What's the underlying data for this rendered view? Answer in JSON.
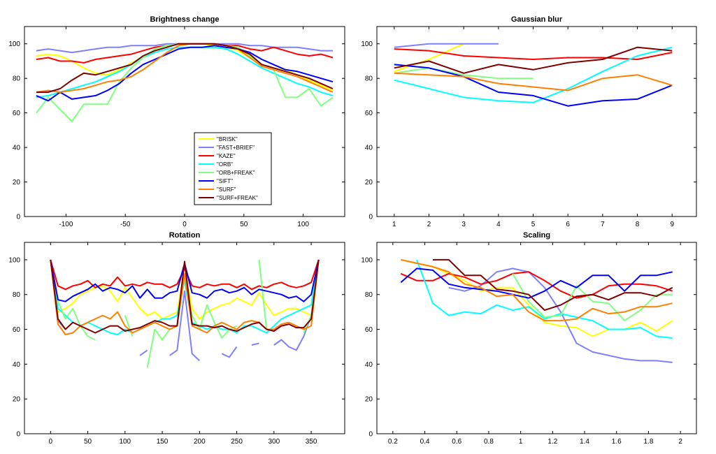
{
  "chart_data": [
    {
      "type": "line",
      "title": "Brightness change",
      "xlabel": "",
      "ylabel": "",
      "xlim": [
        -135,
        135
      ],
      "ylim": [
        0,
        110
      ],
      "xticks": [
        -100,
        -50,
        0,
        50,
        100
      ],
      "yticks": [
        0,
        20,
        40,
        60,
        80,
        100
      ],
      "legend": {
        "position": "center"
      },
      "x": [
        -125,
        -115,
        -105,
        -95,
        -85,
        -75,
        -65,
        -55,
        -45,
        -35,
        -25,
        -15,
        -5,
        5,
        15,
        25,
        35,
        45,
        55,
        65,
        75,
        85,
        95,
        105,
        115,
        125
      ],
      "series": [
        {
          "name": "\"BRISK\"",
          "color": "#ffff00",
          "values": [
            93,
            94,
            93,
            90,
            86,
            83,
            82,
            85,
            89,
            92,
            97,
            99,
            100,
            100,
            100,
            99,
            98,
            96,
            92,
            88,
            86,
            85,
            82,
            79,
            76,
            73
          ]
        },
        {
          "name": "\"FAST+BRIEF\"",
          "color": "#8080ff",
          "values": [
            96,
            97,
            96,
            95,
            96,
            97,
            98,
            98,
            99,
            99,
            99,
            100,
            100,
            100,
            100,
            100,
            100,
            100,
            99,
            99,
            98,
            98,
            98,
            97,
            96,
            96
          ]
        },
        {
          "name": "\"KAZE\"",
          "color": "#ff0000",
          "values": [
            91,
            92,
            90,
            90,
            89,
            91,
            92,
            93,
            94,
            96,
            98,
            99,
            100,
            100,
            100,
            100,
            99,
            99,
            97,
            96,
            98,
            96,
            94,
            93,
            94,
            92
          ]
        },
        {
          "name": "\"ORB\"",
          "color": "#00ffff",
          "values": [
            69,
            70,
            72,
            74,
            76,
            78,
            81,
            84,
            88,
            92,
            95,
            97,
            98,
            98,
            98,
            98,
            97,
            94,
            90,
            86,
            83,
            80,
            77,
            75,
            72,
            70
          ]
        },
        {
          "name": "\"ORB+FREAK\"",
          "color": "#80ff80",
          "values": [
            60,
            69,
            62,
            55,
            65,
            65,
            65,
            78,
            86,
            92,
            97,
            99,
            100,
            100,
            100,
            100,
            99,
            98,
            93,
            87,
            85,
            69,
            69,
            74,
            64,
            69
          ]
        },
        {
          "name": "\"SIFT\"",
          "color": "#0000ff",
          "values": [
            70,
            67,
            72,
            68,
            69,
            70,
            73,
            77,
            83,
            88,
            91,
            94,
            97,
            98,
            98,
            99,
            98,
            97,
            95,
            91,
            88,
            85,
            84,
            82,
            80,
            78
          ]
        },
        {
          "name": "\"SURF\"",
          "color": "#ff8000",
          "values": [
            72,
            73,
            72,
            73,
            74,
            76,
            78,
            79,
            81,
            85,
            90,
            95,
            99,
            100,
            100,
            100,
            99,
            97,
            92,
            87,
            85,
            83,
            81,
            78,
            75,
            72
          ]
        },
        {
          "name": "\"SURF+FREAK\"",
          "color": "#800000",
          "values": [
            72,
            72,
            74,
            79,
            83,
            82,
            84,
            86,
            88,
            93,
            96,
            98,
            100,
            100,
            100,
            100,
            99,
            97,
            94,
            88,
            86,
            84,
            82,
            80,
            77,
            74
          ]
        }
      ]
    },
    {
      "type": "line",
      "title": "Gaussian blur",
      "xlabel": "",
      "ylabel": "",
      "xlim": [
        0.5,
        9.7
      ],
      "ylim": [
        0,
        110
      ],
      "xticks": [
        1,
        2,
        3,
        4,
        5,
        6,
        7,
        8,
        9
      ],
      "yticks": [
        0,
        20,
        40,
        60,
        80,
        100
      ],
      "x": [
        1,
        2,
        3,
        4,
        5,
        6,
        7,
        8,
        9
      ],
      "series": [
        {
          "name": "\"BRISK\"",
          "color": "#ffff00",
          "values": [
            84,
            91,
            100,
            null,
            null,
            null,
            null,
            null,
            null
          ]
        },
        {
          "name": "\"FAST+BRIEF\"",
          "color": "#8080ff",
          "values": [
            98,
            100,
            100,
            100,
            null,
            null,
            null,
            null,
            null
          ]
        },
        {
          "name": "\"KAZE\"",
          "color": "#ff0000",
          "values": [
            97,
            96,
            93,
            92,
            91,
            92,
            92,
            91,
            95
          ]
        },
        {
          "name": "\"ORB\"",
          "color": "#00ffff",
          "values": [
            79,
            74,
            69,
            67,
            66,
            74,
            84,
            93,
            98
          ]
        },
        {
          "name": "\"ORB+FREAK\"",
          "color": "#80ff80",
          "values": [
            83,
            86,
            82,
            80,
            80,
            null,
            null,
            null,
            null
          ]
        },
        {
          "name": "\"SIFT\"",
          "color": "#0000ff",
          "values": [
            88,
            86,
            81,
            72,
            70,
            64,
            67,
            68,
            76
          ]
        },
        {
          "name": "\"SURF\"",
          "color": "#ff8000",
          "values": [
            83,
            82,
            81,
            77,
            75,
            73,
            80,
            82,
            76
          ]
        },
        {
          "name": "\"SURF+FREAK\"",
          "color": "#800000",
          "values": [
            86,
            90,
            83,
            88,
            85,
            89,
            91,
            98,
            96
          ]
        }
      ]
    },
    {
      "type": "line",
      "title": "Rotation",
      "xlabel": "",
      "ylabel": "",
      "xlim": [
        -35,
        395
      ],
      "ylim": [
        0,
        110
      ],
      "xticks": [
        0,
        50,
        100,
        150,
        200,
        250,
        300,
        350
      ],
      "yticks": [
        0,
        20,
        40,
        60,
        80,
        100
      ],
      "x": [
        0,
        10,
        20,
        30,
        40,
        50,
        60,
        70,
        80,
        90,
        100,
        110,
        120,
        130,
        140,
        150,
        160,
        170,
        180,
        190,
        200,
        210,
        220,
        230,
        240,
        250,
        260,
        270,
        280,
        290,
        300,
        310,
        320,
        330,
        340,
        350,
        360
      ],
      "series": [
        {
          "name": "\"BRISK\"",
          "color": "#ffff00",
          "values": [
            100,
            70,
            72,
            75,
            80,
            82,
            84,
            85,
            82,
            76,
            84,
            78,
            72,
            68,
            70,
            66,
            68,
            70,
            96,
            72,
            66,
            70,
            72,
            74,
            75,
            78,
            76,
            74,
            81,
            74,
            68,
            70,
            72,
            72,
            70,
            68,
            100
          ]
        },
        {
          "name": "\"FAST+BRIEF\"",
          "color": "#8080ff",
          "values": [
            100,
            65,
            60,
            null,
            null,
            null,
            null,
            null,
            null,
            null,
            null,
            null,
            45,
            48,
            null,
            null,
            45,
            48,
            82,
            46,
            42,
            null,
            null,
            46,
            44,
            50,
            null,
            51,
            52,
            null,
            51,
            54,
            50,
            48,
            56,
            68,
            100
          ]
        },
        {
          "name": "\"KAZE\"",
          "color": "#ff0000",
          "values": [
            100,
            85,
            83,
            85,
            86,
            88,
            84,
            86,
            85,
            90,
            85,
            86,
            85,
            87,
            86,
            86,
            84,
            86,
            95,
            85,
            84,
            86,
            85,
            86,
            86,
            84,
            86,
            83,
            85,
            84,
            86,
            87,
            85,
            84,
            85,
            87,
            100
          ]
        },
        {
          "name": "\"ORB\"",
          "color": "#00ffff",
          "values": [
            100,
            72,
            68,
            64,
            62,
            64,
            62,
            60,
            58,
            57,
            60,
            58,
            60,
            62,
            64,
            66,
            66,
            68,
            88,
            64,
            62,
            60,
            62,
            60,
            60,
            58,
            62,
            62,
            60,
            58,
            62,
            66,
            68,
            70,
            72,
            74,
            100
          ]
        },
        {
          "name": "\"ORB+FREAK\"",
          "color": "#80ff80",
          "values": [
            100,
            76,
            66,
            72,
            62,
            56,
            54,
            null,
            null,
            null,
            68,
            56,
            null,
            38,
            60,
            54,
            60,
            62,
            90,
            68,
            60,
            74,
            64,
            55,
            60,
            62,
            null,
            null,
            100,
            60,
            null,
            null,
            null,
            null,
            58,
            68,
            100
          ]
        },
        {
          "name": "\"SIFT\"",
          "color": "#0000ff",
          "values": [
            100,
            77,
            76,
            79,
            81,
            83,
            86,
            82,
            84,
            83,
            81,
            85,
            78,
            83,
            78,
            78,
            81,
            82,
            98,
            81,
            80,
            78,
            82,
            83,
            81,
            82,
            84,
            80,
            83,
            82,
            81,
            80,
            78,
            79,
            76,
            80,
            100
          ]
        },
        {
          "name": "\"SURF\"",
          "color": "#ff8000",
          "values": [
            100,
            63,
            57,
            58,
            62,
            64,
            66,
            68,
            66,
            70,
            62,
            58,
            60,
            62,
            64,
            62,
            60,
            62,
            92,
            62,
            60,
            58,
            62,
            64,
            62,
            60,
            64,
            65,
            64,
            60,
            60,
            63,
            64,
            62,
            60,
            62,
            100
          ]
        },
        {
          "name": "\"SURF+FREAK\"",
          "color": "#800000",
          "values": [
            100,
            66,
            60,
            64,
            62,
            60,
            58,
            60,
            62,
            62,
            59,
            60,
            61,
            63,
            65,
            64,
            62,
            62,
            99,
            63,
            62,
            62,
            61,
            62,
            60,
            59,
            61,
            63,
            64,
            60,
            59,
            62,
            63,
            61,
            61,
            66,
            100
          ]
        }
      ]
    },
    {
      "type": "line",
      "title": "Scaling",
      "xlabel": "",
      "ylabel": "",
      "xlim": [
        0.1,
        2.1
      ],
      "ylim": [
        0,
        110
      ],
      "xticks": [
        0.2,
        0.4,
        0.6,
        0.8,
        1,
        1.2,
        1.4,
        1.6,
        1.8,
        2
      ],
      "yticks": [
        0,
        20,
        40,
        60,
        80,
        100
      ],
      "x": [
        0.25,
        0.35,
        0.45,
        0.55,
        0.65,
        0.75,
        0.85,
        0.95,
        1.05,
        1.15,
        1.25,
        1.35,
        1.45,
        1.55,
        1.65,
        1.75,
        1.85,
        1.95
      ],
      "series": [
        {
          "name": "\"BRISK\"",
          "color": "#ffff00",
          "values": [
            100,
            98,
            96,
            92,
            88,
            82,
            84,
            84,
            74,
            64,
            62,
            61,
            56,
            60,
            60,
            64,
            59,
            65
          ]
        },
        {
          "name": "\"FAST+BRIEF\"",
          "color": "#8080ff",
          "values": [
            null,
            null,
            null,
            84,
            82,
            85,
            93,
            95,
            93,
            84,
            70,
            52,
            47,
            45,
            43,
            42,
            42,
            41
          ]
        },
        {
          "name": "\"KAZE\"",
          "color": "#ff0000",
          "values": [
            92,
            88,
            88,
            92,
            90,
            86,
            88,
            92,
            93,
            88,
            82,
            78,
            80,
            85,
            86,
            86,
            85,
            82
          ]
        },
        {
          "name": "\"ORB\"",
          "color": "#00ffff",
          "values": [
            null,
            100,
            75,
            68,
            70,
            69,
            74,
            71,
            73,
            66,
            69,
            67,
            65,
            60,
            60,
            61,
            56,
            55
          ]
        },
        {
          "name": "\"ORB+FREAK\"",
          "color": "#80ff80",
          "values": [
            null,
            null,
            null,
            null,
            null,
            null,
            null,
            92,
            76,
            67,
            68,
            85,
            76,
            75,
            65,
            71,
            80,
            80
          ]
        },
        {
          "name": "\"SIFT\"",
          "color": "#0000ff",
          "values": [
            87,
            95,
            94,
            86,
            84,
            83,
            82,
            80,
            78,
            82,
            88,
            84,
            91,
            91,
            82,
            91,
            91,
            93
          ]
        },
        {
          "name": "\"SURF\"",
          "color": "#ff8000",
          "values": [
            100,
            98,
            96,
            93,
            86,
            84,
            79,
            80,
            70,
            65,
            65,
            66,
            72,
            69,
            70,
            73,
            73,
            75
          ]
        },
        {
          "name": "\"SURF+FREAK\"",
          "color": "#800000",
          "values": [
            null,
            null,
            100,
            100,
            91,
            91,
            83,
            82,
            80,
            71,
            74,
            79,
            80,
            77,
            81,
            81,
            79,
            84
          ]
        }
      ]
    }
  ]
}
